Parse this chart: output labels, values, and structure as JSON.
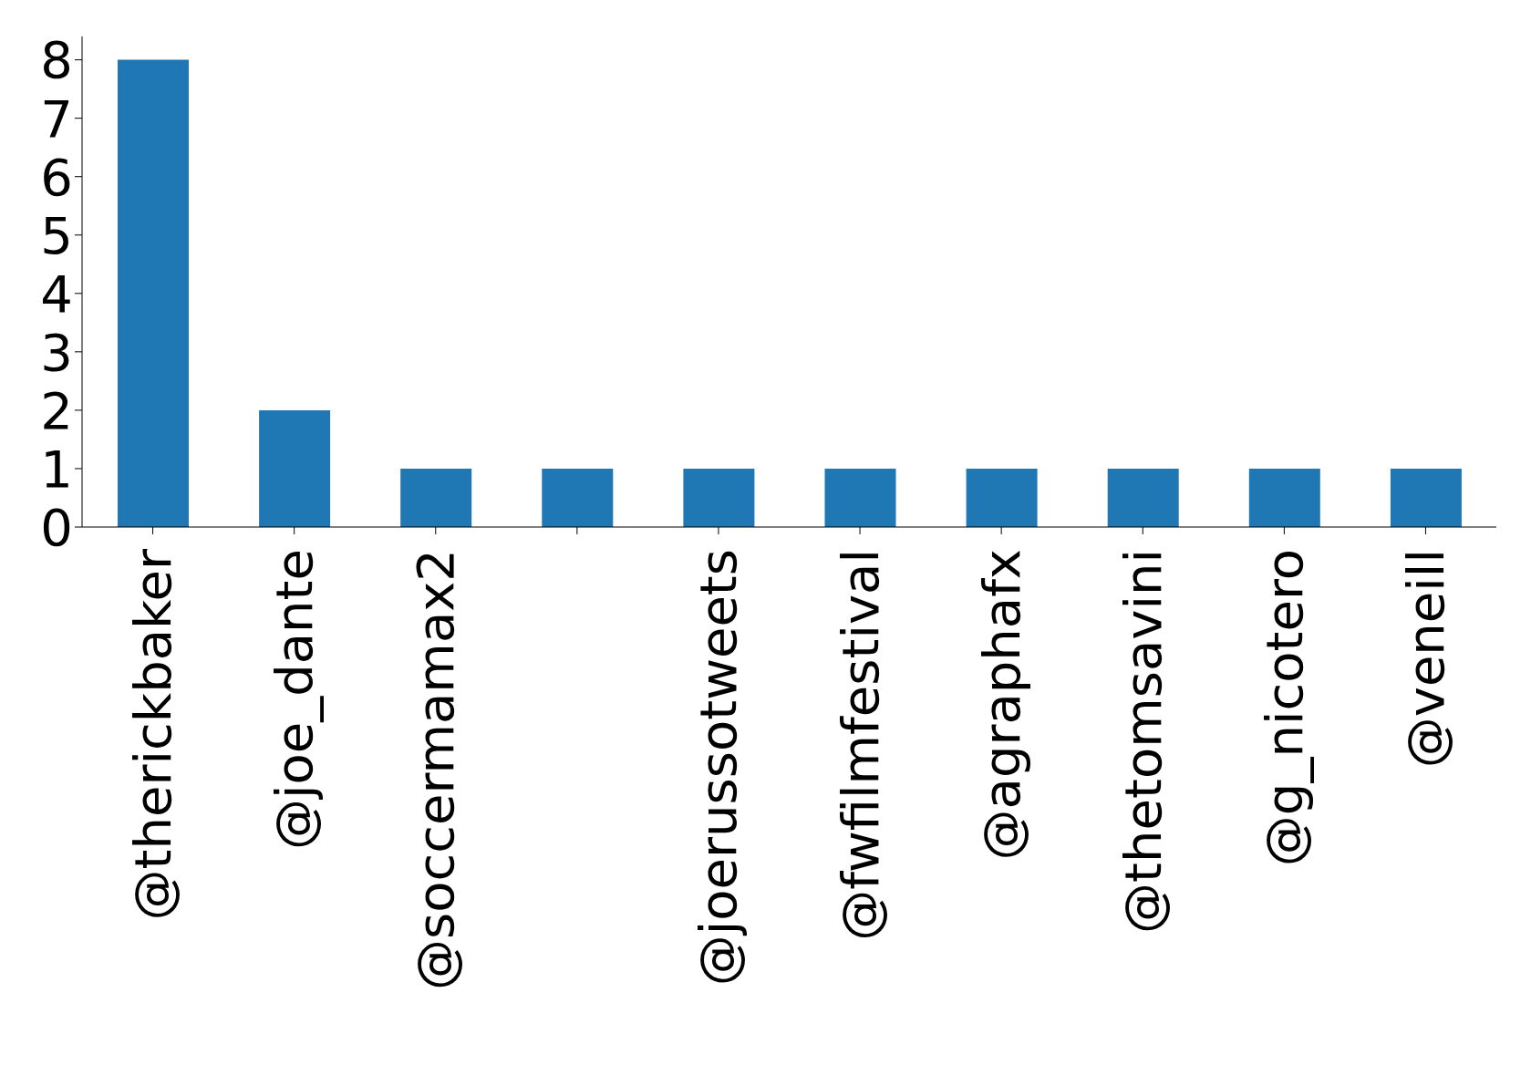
{
  "chart_data": {
    "type": "bar",
    "categories": [
      "@therickbaker",
      "@joe_dante",
      "@soccermamax2",
      null,
      "@joerussotweets",
      "@fwfilmfestival",
      "@agraphafx",
      "@thetomsavini",
      "@g_nicotero",
      "@veneill"
    ],
    "values": [
      8,
      2,
      1,
      1,
      1,
      1,
      1,
      1,
      1,
      1
    ],
    "color": "#1f77b4",
    "ylim": [
      0,
      8.4
    ],
    "yticks": [
      0,
      1,
      2,
      3,
      4,
      5,
      6,
      7,
      8
    ],
    "grid": false,
    "legend": false
  }
}
